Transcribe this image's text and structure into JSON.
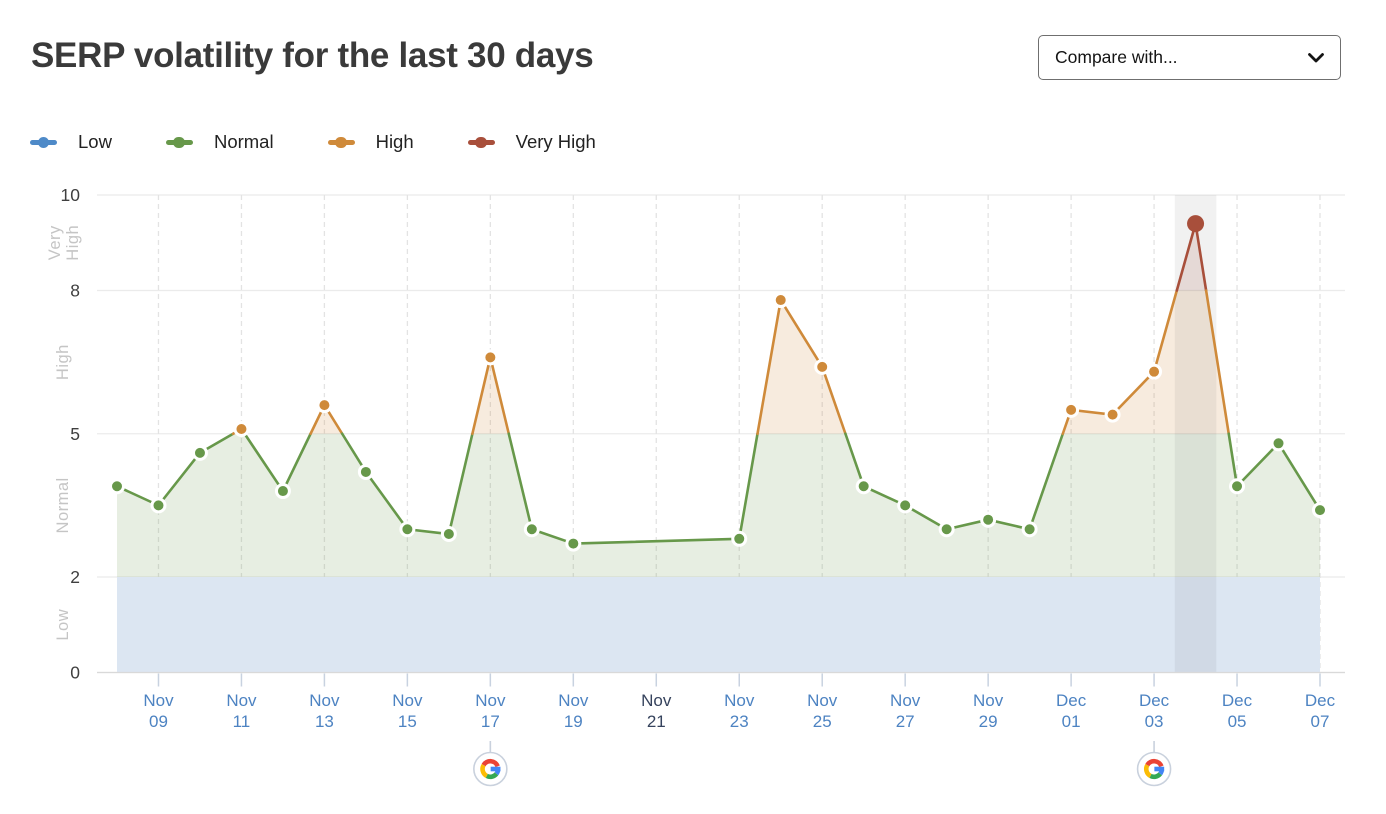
{
  "header": {
    "title": "SERP volatility for the last 30 days",
    "compare_dropdown": {
      "label": "Compare with...",
      "icon": "chevron-down-icon"
    }
  },
  "legend": {
    "items": [
      {
        "label": "Low",
        "color": "#4e8ac8"
      },
      {
        "label": "Normal",
        "color": "#67984a"
      },
      {
        "label": "High",
        "color": "#cf8a3a"
      },
      {
        "label": "Very High",
        "color": "#a84f3b"
      }
    ]
  },
  "chart_data": {
    "type": "line",
    "title": "SERP volatility for the last 30 days",
    "ylim": [
      0,
      10
    ],
    "y_ticks": [
      0,
      2,
      5,
      8,
      10
    ],
    "grid": true,
    "legend_position": "top-left",
    "zones": [
      {
        "label": "Low",
        "from": 0,
        "to": 2,
        "color": "#4e8ac8",
        "fill": "#dce6f2"
      },
      {
        "label": "Normal",
        "from": 2,
        "to": 5,
        "color": "#67984a",
        "fill": "rgba(105,150,75,0.16)"
      },
      {
        "label": "High",
        "from": 5,
        "to": 8,
        "color": "#cf8a3a",
        "fill": "rgba(207,138,58,0.17)"
      },
      {
        "label": "Very High",
        "from": 8,
        "to": 10,
        "color": "#a84f3b",
        "fill": "rgba(168,79,59,0.15)"
      }
    ],
    "categories": [
      "Nov 08",
      "Nov 09",
      "Nov 10",
      "Nov 11",
      "Nov 12",
      "Nov 13",
      "Nov 14",
      "Nov 15",
      "Nov 16",
      "Nov 17",
      "Nov 18",
      "Nov 19",
      "Nov 20",
      "Nov 21",
      "Nov 22",
      "Nov 23",
      "Nov 24",
      "Nov 25",
      "Nov 26",
      "Nov 27",
      "Nov 28",
      "Nov 29",
      "Nov 30",
      "Dec 01",
      "Dec 02",
      "Dec 03",
      "Dec 04",
      "Dec 05",
      "Dec 06",
      "Dec 07"
    ],
    "values": [
      3.9,
      3.5,
      4.6,
      5.1,
      3.8,
      5.6,
      4.2,
      3.0,
      2.9,
      6.6,
      3.0,
      2.7,
      null,
      null,
      null,
      2.8,
      7.8,
      6.4,
      3.9,
      3.5,
      3.0,
      3.2,
      3.0,
      5.5,
      5.4,
      6.3,
      9.4,
      3.9,
      4.8,
      3.4
    ],
    "x_tick_labels": [
      "Nov 09",
      "Nov 11",
      "Nov 13",
      "Nov 15",
      "Nov 17",
      "Nov 19",
      "Nov 21",
      "Nov 23",
      "Nov 25",
      "Nov 27",
      "Nov 29",
      "Dec 01",
      "Dec 03",
      "Dec 05",
      "Dec 07"
    ],
    "dark_x_tick": "Nov 21",
    "x_label_color": "#4d83c2",
    "x_label_dark_color": "#36435d",
    "highlighted_category": "Dec 04",
    "google_update_markers": [
      "Nov 17",
      "Dec 03"
    ],
    "google_colors": {
      "blue": "#4285f4",
      "red": "#ea4335",
      "yellow": "#fbbc05",
      "green": "#34a853"
    }
  }
}
